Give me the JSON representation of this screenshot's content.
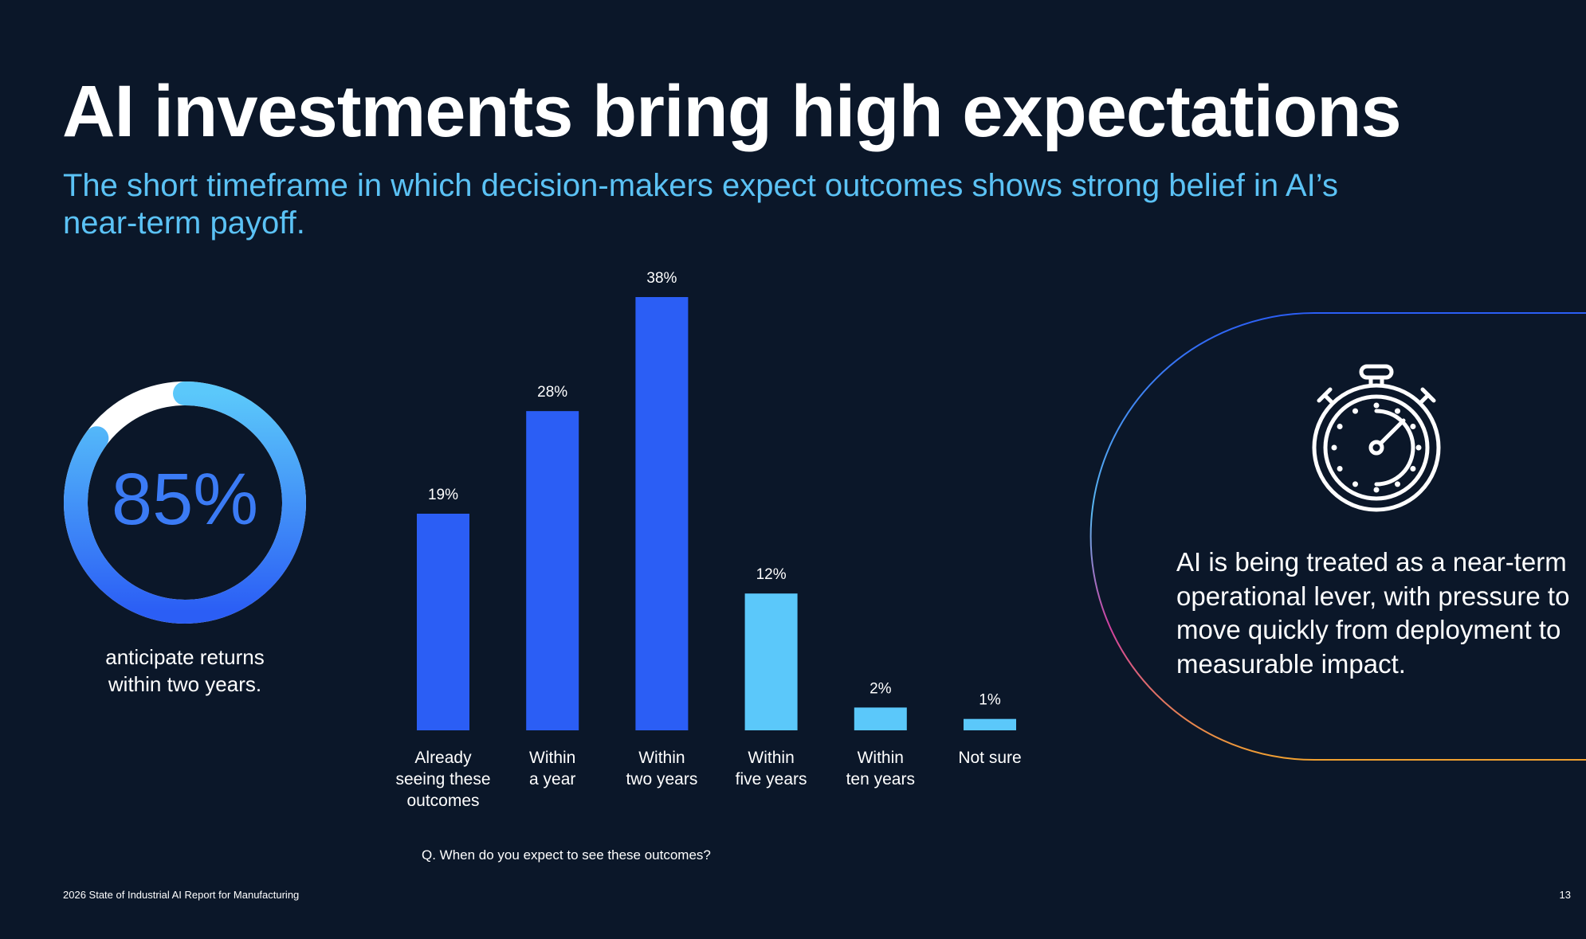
{
  "header": {
    "title": "AI investments bring high expectations",
    "subtitle": "The short timeframe in which decision-makers expect outcomes shows strong belief in AI’s near-term payoff."
  },
  "donut": {
    "value_label": "85%",
    "value": 85,
    "caption_line1": "anticipate returns",
    "caption_line2": "within two years.",
    "colors": {
      "gradient_start": "#2b5ef5",
      "gradient_end": "#5bc8fa",
      "remainder": "#ffffff"
    }
  },
  "chart_data": {
    "type": "bar",
    "categories": [
      [
        "Already",
        "seeing these",
        "outcomes"
      ],
      [
        "Within",
        "a year"
      ],
      [
        "Within",
        "two years"
      ],
      [
        "Within",
        "five years"
      ],
      [
        "Within",
        "ten years"
      ],
      [
        "Not sure"
      ]
    ],
    "values": [
      19,
      28,
      38,
      12,
      2,
      1
    ],
    "data_labels": [
      "19%",
      "28%",
      "38%",
      "12%",
      "2%",
      "1%"
    ],
    "bar_colors": [
      "#2b5ef5",
      "#2b5ef5",
      "#2b5ef5",
      "#5bc8fa",
      "#5bc8fa",
      "#5bc8fa"
    ],
    "title": "",
    "xlabel": "",
    "ylabel": "",
    "ylim": [
      0,
      38
    ],
    "grid": false,
    "question": "Q. When do you expect to see these outcomes?"
  },
  "panel": {
    "icon": "stopwatch-icon",
    "text": "AI is being treated as a near-term operational lever, with pressure to move quickly from deployment to measurable impact."
  },
  "footer": {
    "report": "2026 State of Industrial AI Report for Manufacturing",
    "page": "13"
  }
}
